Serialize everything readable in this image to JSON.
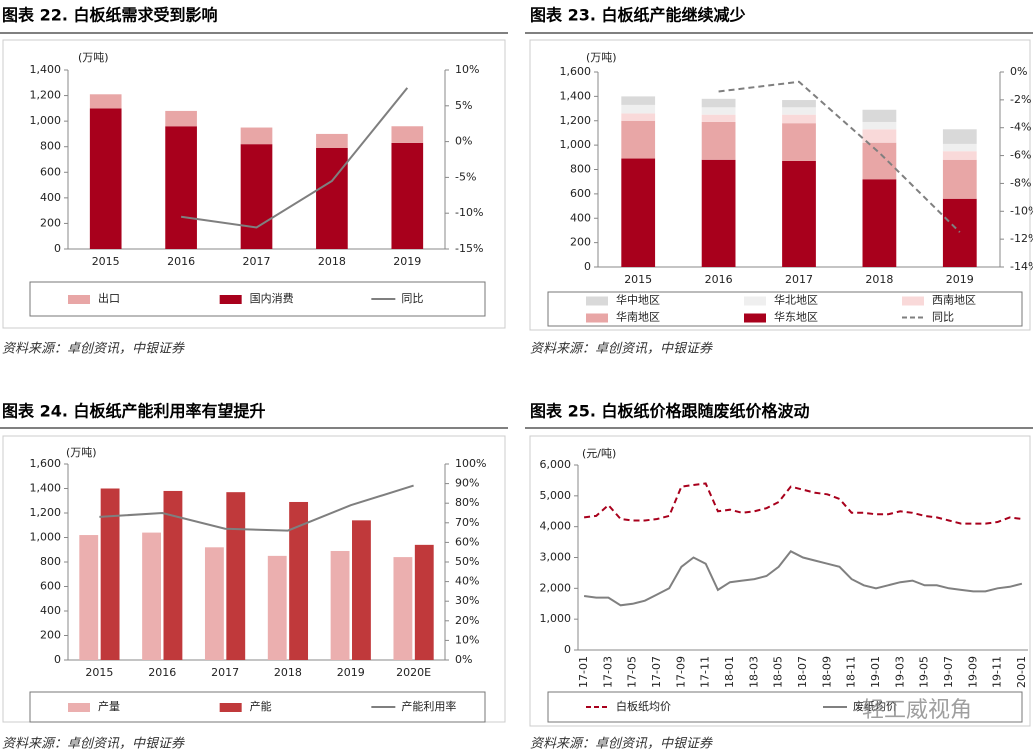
{
  "chart_data": [
    {
      "type": "bar",
      "title": "图表 22. 白板纸需求受到影响",
      "unit": "(万吨)",
      "source": "资料来源：卓创资讯，中银证券",
      "stacked": true,
      "categories": [
        "2015",
        "2016",
        "2017",
        "2018",
        "2019"
      ],
      "series": [
        {
          "name": "出口",
          "color": "#E8A6A6",
          "values": [
            110,
            120,
            130,
            110,
            130
          ]
        },
        {
          "name": "国内消费",
          "color": "#A8001C",
          "values": [
            1100,
            960,
            820,
            790,
            830
          ]
        },
        {
          "name": "同比",
          "color": "#7F7F7F",
          "type": "line",
          "axis": "y2",
          "values": [
            null,
            -10.5,
            -12,
            -5.5,
            7.5
          ]
        }
      ],
      "ylim": [
        0,
        1400
      ],
      "yticks": [
        0,
        200,
        400,
        600,
        800,
        {
          "value": 1000,
          "label": "1,000"
        },
        {
          "value": 1200,
          "label": "1,200"
        },
        {
          "value": 1400,
          "label": "1,400"
        }
      ],
      "y2lim": [
        -15,
        10
      ],
      "y2ticks": [
        {
          "value": -15,
          "label": "-15%"
        },
        {
          "value": -10,
          "label": "-10%"
        },
        {
          "value": -5,
          "label": "-5%"
        },
        {
          "value": 0,
          "label": "0%"
        },
        {
          "value": 5,
          "label": "5%"
        },
        {
          "value": 10,
          "label": "10%"
        }
      ]
    },
    {
      "type": "bar",
      "title": "图表 23. 白板纸产能继续减少",
      "unit": "(万吨)",
      "source": "资料来源：卓创资讯，中银证券",
      "stacked": true,
      "categories": [
        "2015",
        "2016",
        "2017",
        "2018",
        "2019"
      ],
      "series": [
        {
          "name": "华中地区",
          "color": "#D9D9D9",
          "values": [
            70,
            70,
            60,
            100,
            120
          ]
        },
        {
          "name": "华北地区",
          "color": "#EFEFEF",
          "values": [
            70,
            60,
            60,
            60,
            60
          ]
        },
        {
          "name": "西南地区",
          "color": "#F9D9D9",
          "values": [
            60,
            60,
            70,
            110,
            70
          ]
        },
        {
          "name": "华南地区",
          "color": "#E8A6A6",
          "values": [
            310,
            310,
            310,
            300,
            320
          ]
        },
        {
          "name": "华东地区",
          "color": "#A8001C",
          "values": [
            890,
            880,
            870,
            720,
            560
          ]
        },
        {
          "name": "同比",
          "color": "#7F7F7F",
          "type": "line",
          "dash": true,
          "axis": "y2",
          "values": [
            null,
            -1.4,
            -0.7,
            -5.8,
            -11.5
          ]
        }
      ],
      "ylim": [
        0,
        1600
      ],
      "yticks": [
        0,
        200,
        400,
        600,
        800,
        {
          "value": 1000,
          "label": "1,000"
        },
        {
          "value": 1200,
          "label": "1,200"
        },
        {
          "value": 1400,
          "label": "1,400"
        },
        {
          "value": 1600,
          "label": "1,600"
        }
      ],
      "y2lim": [
        -14,
        0
      ],
      "y2ticks": [
        {
          "value": -14,
          "label": "-14%"
        },
        {
          "value": -12,
          "label": "-12%"
        },
        {
          "value": -10,
          "label": "-10%"
        },
        {
          "value": -8,
          "label": "-8%"
        },
        {
          "value": -6,
          "label": "-6%"
        },
        {
          "value": -4,
          "label": "-4%"
        },
        {
          "value": -2,
          "label": "-2%"
        },
        {
          "value": 0,
          "label": "0%"
        }
      ]
    },
    {
      "type": "bar",
      "title": "图表 24. 白板纸产能利用率有望提升",
      "unit": "(万吨)",
      "source": "资料来源：卓创资讯，中银证券",
      "stacked": false,
      "categories": [
        "2015",
        "2016",
        "2017",
        "2018",
        "2019",
        "2020E"
      ],
      "series": [
        {
          "name": "产量",
          "color": "#EBAFAF",
          "values": [
            1020,
            1040,
            920,
            850,
            890,
            840
          ]
        },
        {
          "name": "产能",
          "color": "#C0393B",
          "values": [
            1400,
            1380,
            1370,
            1290,
            1140,
            940
          ]
        },
        {
          "name": "产能利用率",
          "color": "#7F7F7F",
          "type": "line",
          "axis": "y2",
          "values": [
            73,
            75,
            67,
            66,
            79,
            89
          ]
        }
      ],
      "ylim": [
        0,
        1600
      ],
      "yticks": [
        0,
        200,
        400,
        600,
        800,
        {
          "value": 1000,
          "label": "1,000"
        },
        {
          "value": 1200,
          "label": "1,200"
        },
        {
          "value": 1400,
          "label": "1,400"
        },
        {
          "value": 1600,
          "label": "1,600"
        }
      ],
      "y2lim": [
        0,
        100
      ],
      "y2ticks": [
        {
          "value": 0,
          "label": "0%"
        },
        {
          "value": 10,
          "label": "10%"
        },
        {
          "value": 20,
          "label": "20%"
        },
        {
          "value": 30,
          "label": "30%"
        },
        {
          "value": 40,
          "label": "40%"
        },
        {
          "value": 50,
          "label": "50%"
        },
        {
          "value": 60,
          "label": "60%"
        },
        {
          "value": 70,
          "label": "70%"
        },
        {
          "value": 80,
          "label": "80%"
        },
        {
          "value": 90,
          "label": "90%"
        },
        {
          "value": 100,
          "label": "100%"
        }
      ]
    },
    {
      "type": "line",
      "title": "图表 25. 白板纸价格跟随废纸价格波动",
      "unit": "(元/吨)",
      "source": "资料来源：卓创资讯，中银证券",
      "categories": [
        "17-01",
        null,
        "17-03",
        null,
        "17-05",
        null,
        "17-07",
        null,
        "17-09",
        null,
        "17-11",
        null,
        "18-01",
        null,
        "18-03",
        null,
        "18-05",
        null,
        "18-07",
        null,
        "18-09",
        null,
        "18-11",
        null,
        "19-01",
        null,
        "19-03",
        null,
        "19-05",
        null,
        "19-07",
        null,
        "19-09",
        null,
        "19-11",
        null,
        "20-01"
      ],
      "series": [
        {
          "name": "白板纸均价",
          "color": "#A8001C",
          "dash": true,
          "values": [
            4300,
            4350,
            4700,
            4250,
            4200,
            4200,
            4250,
            4350,
            5300,
            5350,
            5400,
            4500,
            4550,
            4450,
            4500,
            4600,
            4800,
            5300,
            5200,
            5100,
            5050,
            4900,
            4450,
            4450,
            4400,
            4400,
            4500,
            4450,
            4350,
            4300,
            4200,
            4100,
            4100,
            4100,
            4150,
            4300,
            4250
          ]
        },
        {
          "name": "废纸均价",
          "color": "#808080",
          "values": [
            1750,
            1700,
            1700,
            1450,
            1500,
            1600,
            1800,
            2000,
            2700,
            3000,
            2800,
            1950,
            2200,
            2250,
            2300,
            2400,
            2700,
            3200,
            3000,
            2900,
            2800,
            2700,
            2300,
            2100,
            2000,
            2100,
            2200,
            2250,
            2100,
            2100,
            2000,
            1950,
            1900,
            1900,
            2000,
            2050,
            2150
          ]
        }
      ],
      "ylim": [
        0,
        6000
      ],
      "yticks": [
        0,
        {
          "value": 1000,
          "label": "1,000"
        },
        {
          "value": 2000,
          "label": "2,000"
        },
        {
          "value": 3000,
          "label": "3,000"
        },
        {
          "value": 4000,
          "label": "4,000"
        },
        {
          "value": 5000,
          "label": "5,000"
        },
        {
          "value": 6000,
          "label": "6,000"
        }
      ]
    }
  ],
  "watermark": "轻工威视角"
}
